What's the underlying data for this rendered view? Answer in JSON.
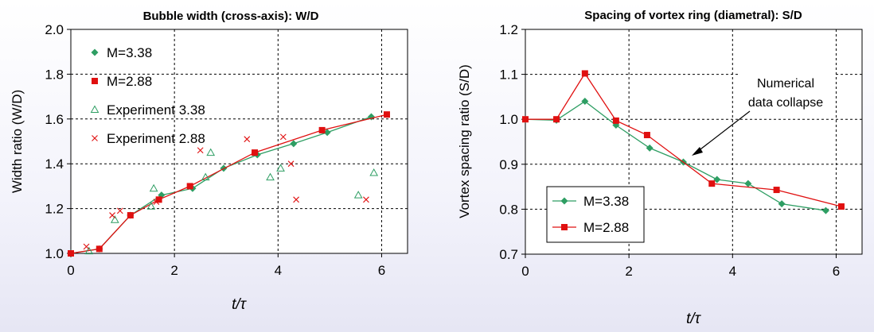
{
  "chart_data": [
    {
      "type": "scatter",
      "title": "Bubble width (cross-axis): W/D",
      "xlabel": "t/τ",
      "ylabel": "Width ratio (W/D)",
      "xlim": [
        0,
        6.5
      ],
      "ylim": [
        1.0,
        2.0
      ],
      "xticks": [
        "0",
        "2",
        "4",
        "6"
      ],
      "yticks": [
        "1.0",
        "1.2",
        "1.4",
        "1.6",
        "1.8",
        "2.0"
      ],
      "grid": true,
      "legend_position": "top-left",
      "series": [
        {
          "name": "M=3.38",
          "marker": "diamond",
          "color": "#2e9e63",
          "line": true,
          "x": [
            0,
            0.55,
            1.15,
            1.75,
            2.35,
            2.95,
            3.6,
            4.3,
            4.95,
            5.8
          ],
          "y": [
            1.0,
            1.02,
            1.17,
            1.26,
            1.29,
            1.38,
            1.44,
            1.49,
            1.54,
            1.61
          ]
        },
        {
          "name": "M=2.88",
          "marker": "square",
          "color": "#e01010",
          "line": true,
          "x": [
            0,
            0.55,
            1.15,
            1.7,
            2.3,
            3.55,
            4.85,
            6.1
          ],
          "y": [
            1.0,
            1.02,
            1.17,
            1.24,
            1.3,
            1.45,
            1.55,
            1.62
          ]
        },
        {
          "name": "Experiment 3.38",
          "marker": "triangle",
          "color": "#2e9e63",
          "line": false,
          "x": [
            0.35,
            0.85,
            1.55,
            1.6,
            2.6,
            2.7,
            3.85,
            4.05,
            5.55,
            5.85
          ],
          "y": [
            1.01,
            1.15,
            1.21,
            1.29,
            1.34,
            1.45,
            1.34,
            1.38,
            1.26,
            1.36
          ]
        },
        {
          "name": "Experiment 2.88",
          "marker": "cross",
          "color": "#e01010",
          "line": false,
          "x": [
            0.3,
            0.8,
            0.95,
            1.65,
            2.5,
            3.4,
            4.1,
            4.25,
            4.35,
            5.7
          ],
          "y": [
            1.03,
            1.17,
            1.19,
            1.23,
            1.46,
            1.51,
            1.52,
            1.4,
            1.24,
            1.24
          ]
        }
      ]
    },
    {
      "type": "line",
      "title": "Spacing of vortex ring (diametral): S/D",
      "xlabel": "t/τ",
      "ylabel": "Vortex spacing ratio (S/D)",
      "xlim": [
        0,
        6.5
      ],
      "ylim": [
        0.7,
        1.2
      ],
      "xticks": [
        "0",
        "2",
        "4",
        "6"
      ],
      "yticks": [
        "0.7",
        "0.8",
        "0.9",
        "1.0",
        "1.1",
        "1.2"
      ],
      "grid": true,
      "legend_position": "bottom-left",
      "annotation": {
        "text_lines": [
          "Numerical",
          "data collapse"
        ],
        "points_to": [
          3.2,
          0.91
        ]
      },
      "series": [
        {
          "name": "M=3.38",
          "marker": "diamond",
          "color": "#2e9e63",
          "x": [
            0,
            0.6,
            1.15,
            1.75,
            2.4,
            3.05,
            3.7,
            4.3,
            4.95,
            5.8
          ],
          "y": [
            1.0,
            0.998,
            1.04,
            0.987,
            0.936,
            0.905,
            0.866,
            0.857,
            0.812,
            0.797
          ]
        },
        {
          "name": "M=2.88",
          "marker": "square",
          "color": "#e01010",
          "x": [
            0,
            0.6,
            1.15,
            1.75,
            2.35,
            3.6,
            4.85,
            6.1
          ],
          "y": [
            1.0,
            1.0,
            1.102,
            0.997,
            0.965,
            0.857,
            0.843,
            0.806
          ]
        }
      ]
    }
  ]
}
